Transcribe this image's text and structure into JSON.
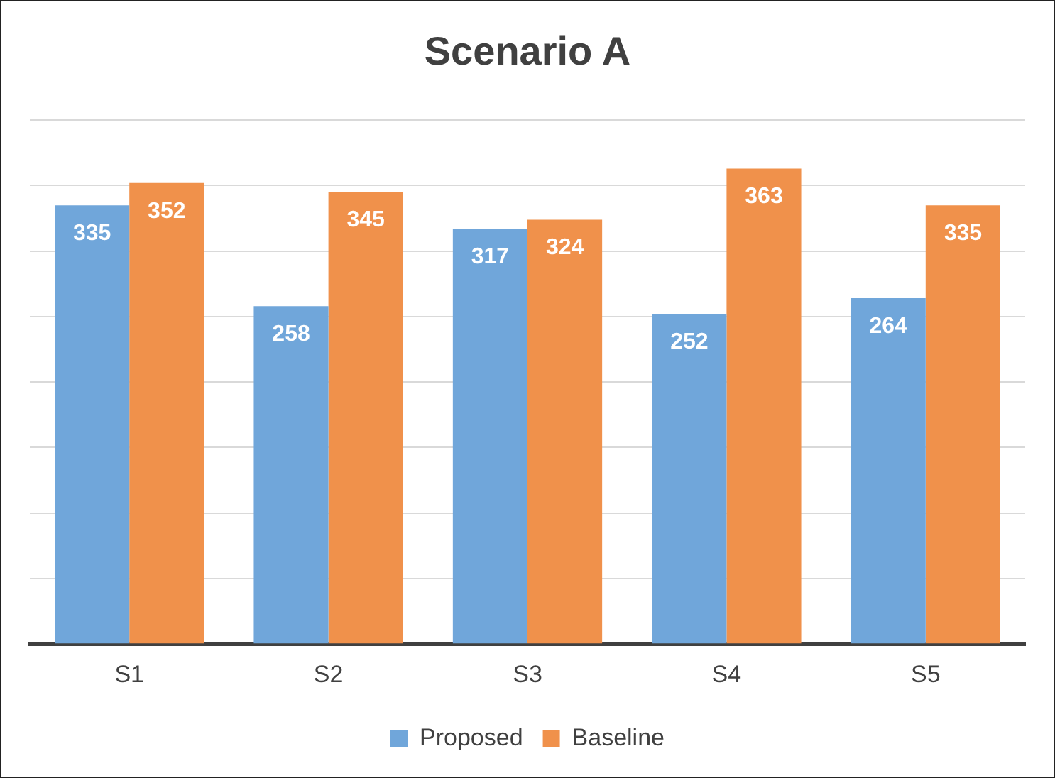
{
  "chart_data": {
    "type": "bar",
    "title": "Scenario A",
    "categories": [
      "S1",
      "S2",
      "S3",
      "S4",
      "S5"
    ],
    "series": [
      {
        "name": "Proposed",
        "color": "#70a6da",
        "values": [
          335,
          258,
          317,
          252,
          264
        ]
      },
      {
        "name": "Baseline",
        "color": "#f0914b",
        "values": [
          352,
          345,
          324,
          363,
          335
        ]
      }
    ],
    "ylim": [
      0,
      400
    ],
    "yticks": [
      {
        "value": 0,
        "label": null
      },
      {
        "value": 50,
        "label": null
      },
      {
        "value": 100,
        "label": null
      },
      {
        "value": 150,
        "label": null
      },
      {
        "value": 200,
        "label": null
      },
      {
        "value": 250,
        "label": null
      },
      {
        "value": 300,
        "label": null
      },
      {
        "value": 350,
        "label": null
      },
      {
        "value": 400,
        "label": null
      }
    ],
    "grid": "y",
    "legend": "bottom",
    "data_labels": true,
    "tick_labels": "x"
  }
}
